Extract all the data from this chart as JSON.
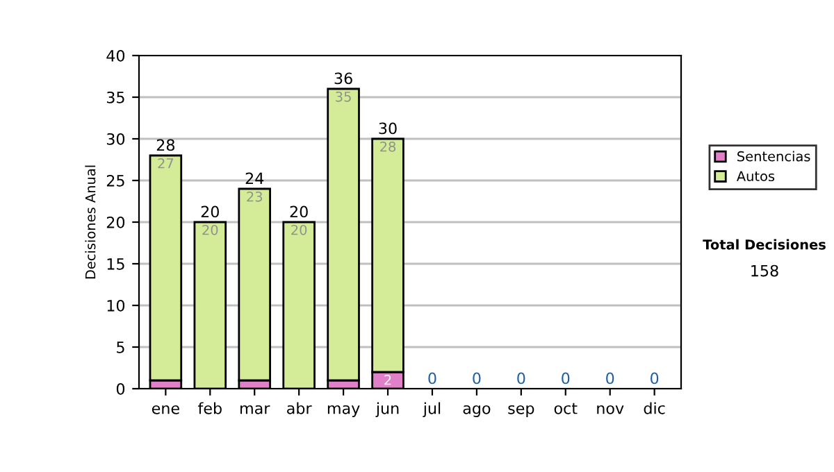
{
  "chart_data": {
    "type": "bar",
    "stacked": true,
    "ylabel": "Decisiones Anual",
    "categories": [
      "ene",
      "feb",
      "mar",
      "abr",
      "may",
      "jun",
      "jul",
      "ago",
      "sep",
      "oct",
      "nov",
      "dic"
    ],
    "series": [
      {
        "name": "Sentencias",
        "color": "#e080c8",
        "values": [
          1,
          0,
          1,
          0,
          1,
          2,
          0,
          0,
          0,
          0,
          0,
          0
        ],
        "value_labels": [
          null,
          null,
          null,
          null,
          null,
          "2",
          null,
          null,
          null,
          null,
          null,
          null
        ]
      },
      {
        "name": "Autos",
        "color": "#d4ec98",
        "values": [
          27,
          20,
          23,
          20,
          35,
          28,
          0,
          0,
          0,
          0,
          0,
          0
        ],
        "value_labels": [
          "27",
          "20",
          "23",
          "20",
          "35",
          "28",
          null,
          null,
          null,
          null,
          null,
          null
        ]
      }
    ],
    "totals": [
      "28",
      "20",
      "24",
      "20",
      "36",
      "30",
      "0",
      "0",
      "0",
      "0",
      "0",
      "0"
    ],
    "ylim": [
      0,
      40
    ],
    "yticks": [
      0,
      5,
      10,
      15,
      20,
      25,
      30,
      35,
      40
    ],
    "grid": "y",
    "legend": "right",
    "annotations": [
      "Total Decisiones",
      "158"
    ]
  }
}
